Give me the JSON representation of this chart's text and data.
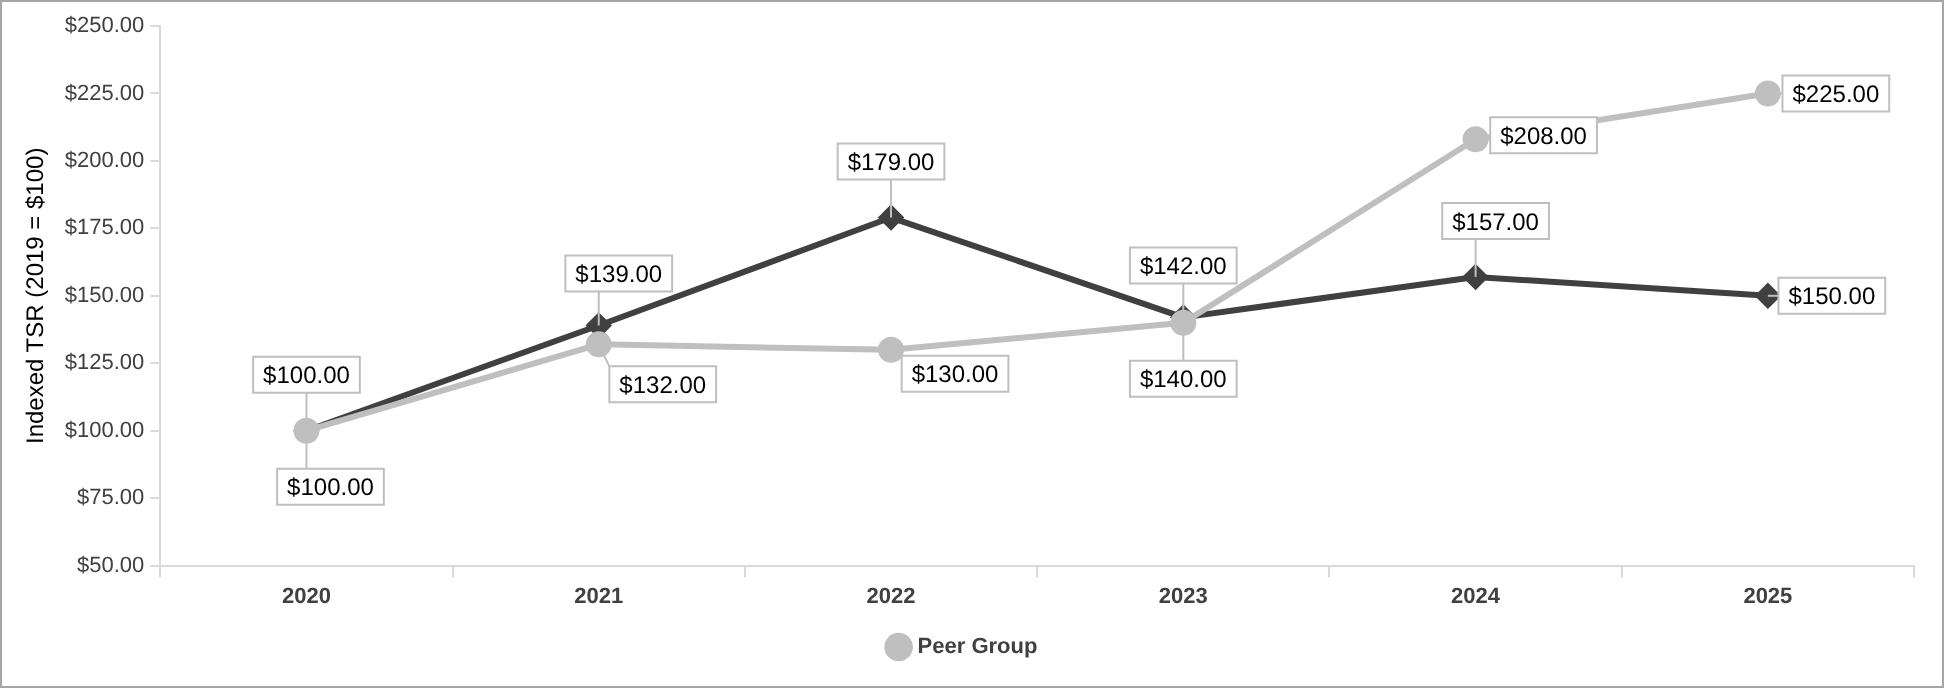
{
  "chart_data": {
    "type": "line",
    "ylabel": "Indexed TSR (2019 = $100)",
    "categories": [
      "2020",
      "2021",
      "2022",
      "2023",
      "2024",
      "2025"
    ],
    "series": [
      {
        "color": "#404040",
        "marker": "diamond",
        "values": [
          100,
          139,
          179,
          142,
          157,
          150
        ],
        "value_labels": [
          "$100.00",
          "$139.00",
          "$179.00",
          "$142.00",
          "$157.00",
          "$150.00"
        ]
      },
      {
        "name": "Peer Group",
        "color": "#bfbfbf",
        "marker": "circle",
        "values": [
          100,
          132,
          130,
          140,
          208,
          225
        ],
        "value_labels": [
          "$100.00",
          "$132.00",
          "$130.00",
          "$140.00",
          "$208.00",
          "$225.00"
        ]
      }
    ],
    "ylim": [
      50,
      250
    ],
    "yticks": [
      {
        "value": 50,
        "label": "$50.00"
      },
      {
        "value": 75,
        "label": "$75.00"
      },
      {
        "value": 100,
        "label": "$100.00"
      },
      {
        "value": 125,
        "label": "$125.00"
      },
      {
        "value": 150,
        "label": "$150.00"
      },
      {
        "value": 175,
        "label": "$175.00"
      },
      {
        "value": 200,
        "label": "$200.00"
      },
      {
        "value": 225,
        "label": "$225.00"
      },
      {
        "value": 250,
        "label": "$250.00"
      }
    ],
    "grid": false,
    "legend": "bottom",
    "line_style": "solid"
  }
}
